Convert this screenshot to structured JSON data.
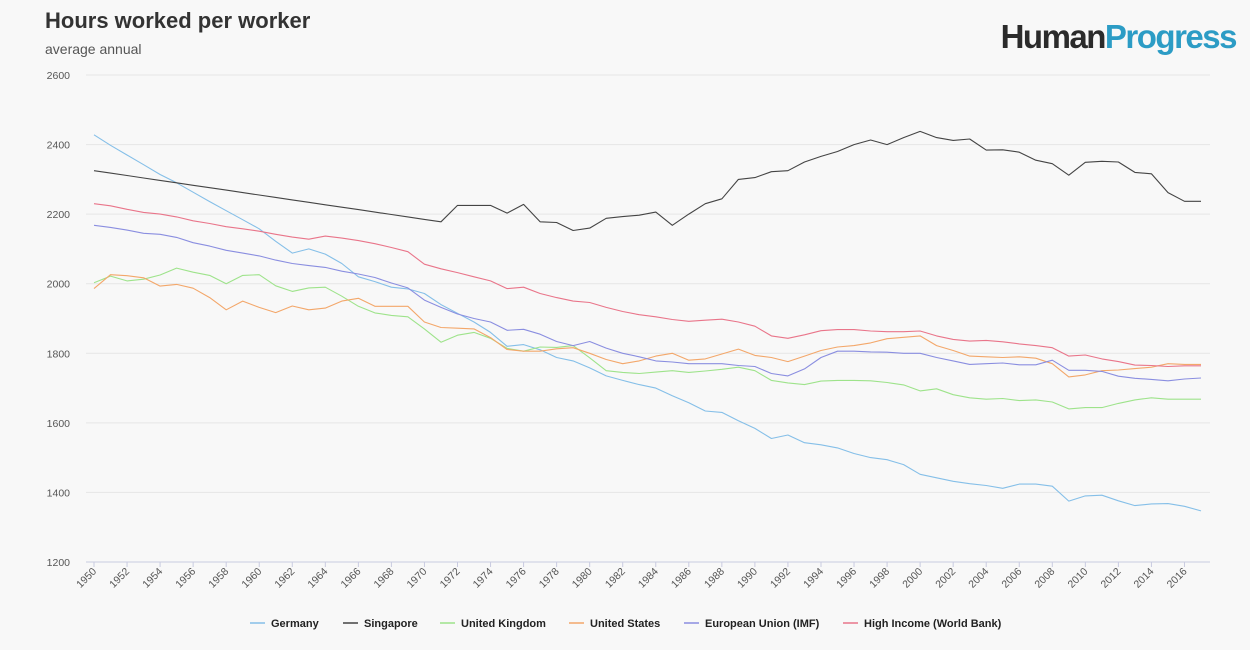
{
  "header": {
    "title": "Hours worked per worker",
    "subtitle": "average annual",
    "brand_part1": "Human",
    "brand_part2": "Progress"
  },
  "colors": {
    "brand_dark": "#2b2b2b",
    "brand_accent": "#2c9cc5"
  },
  "chart_data": {
    "type": "line",
    "title": "Hours worked per worker",
    "subtitle": "average annual",
    "xlabel": "",
    "ylabel": "",
    "xlim": [
      1950,
      2017
    ],
    "ylim": [
      1200,
      2600
    ],
    "yticks": [
      1200,
      1400,
      1600,
      1800,
      2000,
      2200,
      2400,
      2600
    ],
    "xticks": [
      1950,
      1952,
      1954,
      1956,
      1958,
      1960,
      1962,
      1964,
      1966,
      1968,
      1970,
      1972,
      1974,
      1976,
      1978,
      1980,
      1982,
      1984,
      1986,
      1988,
      1990,
      1992,
      1994,
      1996,
      1998,
      2000,
      2002,
      2004,
      2006,
      2008,
      2010,
      2012,
      2014,
      2016
    ],
    "grid": "horizontal",
    "legend_position": "bottom",
    "x": [
      1950,
      1951,
      1952,
      1953,
      1954,
      1955,
      1956,
      1957,
      1958,
      1959,
      1960,
      1961,
      1962,
      1963,
      1964,
      1965,
      1966,
      1967,
      1968,
      1969,
      1970,
      1971,
      1972,
      1973,
      1974,
      1975,
      1976,
      1977,
      1978,
      1979,
      1980,
      1981,
      1982,
      1983,
      1984,
      1985,
      1986,
      1987,
      1988,
      1989,
      1990,
      1991,
      1992,
      1993,
      1994,
      1995,
      1996,
      1997,
      1998,
      1999,
      2000,
      2001,
      2002,
      2003,
      2004,
      2005,
      2006,
      2007,
      2008,
      2009,
      2010,
      2011,
      2012,
      2013,
      2014,
      2015,
      2016,
      2017
    ],
    "series": [
      {
        "name": "Germany",
        "color": "#85bfe8",
        "values": [
          2428,
          2398,
          2370,
          2342,
          2314,
          2290,
          2263,
          2236,
          2210,
          2184,
          2158,
          2122,
          2088,
          2100,
          2085,
          2058,
          2020,
          2006,
          1990,
          1985,
          1972,
          1940,
          1915,
          1890,
          1860,
          1820,
          1825,
          1810,
          1788,
          1778,
          1758,
          1735,
          1722,
          1710,
          1700,
          1678,
          1658,
          1634,
          1630,
          1606,
          1584,
          1555,
          1565,
          1543,
          1537,
          1528,
          1512,
          1500,
          1494,
          1480,
          1452,
          1442,
          1432,
          1425,
          1420,
          1412,
          1424,
          1424,
          1418,
          1375,
          1390,
          1392,
          1376,
          1362,
          1367,
          1368,
          1360,
          1347
        ]
      },
      {
        "name": "Singapore",
        "color": "#444444",
        "values": [
          2325,
          2318,
          2311,
          2304,
          2297,
          2290,
          2283,
          2276,
          2269,
          2262,
          2255,
          2248,
          2241,
          2234,
          2227,
          2220,
          2213,
          2206,
          2199,
          2192,
          2185,
          2178,
          2225,
          2225,
          2225,
          2203,
          2228,
          2178,
          2176,
          2153,
          2160,
          2188,
          2193,
          2197,
          2206,
          2168,
          2200,
          2230,
          2244,
          2300,
          2305,
          2322,
          2325,
          2350,
          2366,
          2380,
          2400,
          2413,
          2400,
          2420,
          2438,
          2420,
          2412,
          2416,
          2384,
          2385,
          2378,
          2355,
          2345,
          2312,
          2349,
          2352,
          2350,
          2320,
          2316,
          2262,
          2237,
          2237
        ]
      },
      {
        "name": "United Kingdom",
        "color": "#9ee38b",
        "values": [
          2003,
          2022,
          2008,
          2013,
          2025,
          2045,
          2033,
          2024,
          2000,
          2024,
          2026,
          1994,
          1978,
          1988,
          1990,
          1964,
          1935,
          1916,
          1909,
          1905,
          1870,
          1832,
          1852,
          1860,
          1843,
          1814,
          1806,
          1818,
          1817,
          1822,
          1787,
          1750,
          1745,
          1742,
          1746,
          1750,
          1745,
          1749,
          1754,
          1760,
          1750,
          1722,
          1715,
          1710,
          1720,
          1722,
          1722,
          1721,
          1716,
          1709,
          1692,
          1698,
          1681,
          1672,
          1668,
          1670,
          1664,
          1666,
          1660,
          1640,
          1644,
          1644,
          1656,
          1666,
          1672,
          1668,
          1668,
          1668
        ]
      },
      {
        "name": "United States",
        "color": "#f3a76a",
        "values": [
          1986,
          2026,
          2023,
          2017,
          1993,
          1998,
          1987,
          1960,
          1925,
          1950,
          1932,
          1917,
          1936,
          1925,
          1930,
          1950,
          1958,
          1935,
          1935,
          1935,
          1890,
          1874,
          1872,
          1870,
          1845,
          1811,
          1806,
          1806,
          1813,
          1816,
          1800,
          1782,
          1770,
          1778,
          1792,
          1800,
          1780,
          1784,
          1798,
          1812,
          1794,
          1788,
          1776,
          1792,
          1808,
          1818,
          1822,
          1830,
          1842,
          1846,
          1850,
          1822,
          1808,
          1792,
          1790,
          1788,
          1790,
          1786,
          1770,
          1732,
          1738,
          1750,
          1752,
          1756,
          1760,
          1770,
          1768,
          1768
        ]
      },
      {
        "name": "European Union (IMF)",
        "color": "#8a8ee0",
        "values": [
          2168,
          2162,
          2154,
          2145,
          2142,
          2133,
          2118,
          2108,
          2096,
          2088,
          2080,
          2068,
          2058,
          2052,
          2047,
          2036,
          2028,
          2018,
          2002,
          1988,
          1953,
          1932,
          1913,
          1900,
          1890,
          1866,
          1869,
          1855,
          1834,
          1822,
          1834,
          1815,
          1800,
          1790,
          1778,
          1775,
          1770,
          1770,
          1770,
          1765,
          1762,
          1742,
          1735,
          1755,
          1788,
          1806,
          1806,
          1804,
          1803,
          1800,
          1800,
          1788,
          1778,
          1768,
          1770,
          1772,
          1767,
          1767,
          1780,
          1751,
          1751,
          1748,
          1734,
          1728,
          1725,
          1721,
          1726,
          1729
        ]
      },
      {
        "name": "High Income (World Bank)",
        "color": "#e9758a",
        "values": [
          2230,
          2224,
          2214,
          2205,
          2200,
          2192,
          2181,
          2173,
          2164,
          2158,
          2151,
          2142,
          2134,
          2128,
          2137,
          2131,
          2124,
          2115,
          2104,
          2092,
          2056,
          2043,
          2032,
          2020,
          2008,
          1986,
          1990,
          1972,
          1960,
          1950,
          1946,
          1932,
          1920,
          1911,
          1905,
          1897,
          1892,
          1895,
          1898,
          1890,
          1878,
          1850,
          1843,
          1853,
          1865,
          1868,
          1868,
          1864,
          1862,
          1862,
          1864,
          1850,
          1840,
          1835,
          1837,
          1833,
          1827,
          1822,
          1816,
          1792,
          1795,
          1784,
          1776,
          1766,
          1765,
          1762,
          1764,
          1764
        ]
      }
    ]
  }
}
